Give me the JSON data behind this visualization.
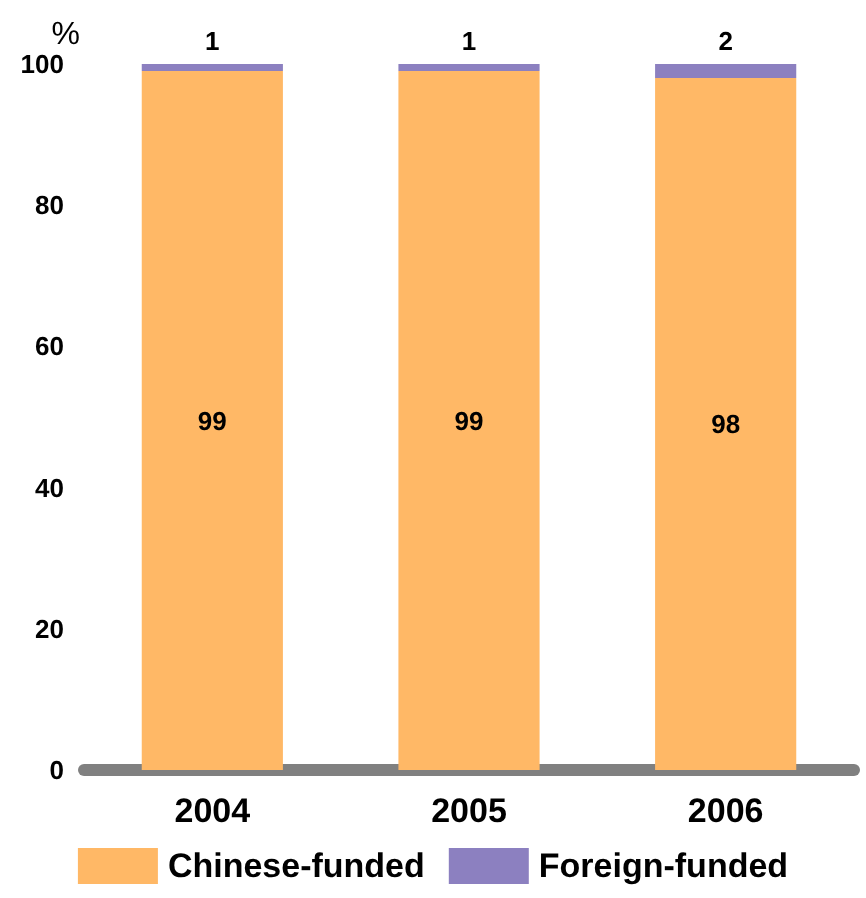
{
  "chart_data": {
    "type": "bar",
    "stacked": true,
    "ylabel": "%",
    "categories": [
      "2004",
      "2005",
      "2006"
    ],
    "series": [
      {
        "name": "Chinese-funded",
        "color": "#ffb866",
        "values": [
          99,
          99,
          98
        ]
      },
      {
        "name": "Foreign-funded",
        "color": "#8c80c0",
        "values": [
          1,
          1,
          2
        ]
      }
    ],
    "ylim": [
      0,
      100
    ],
    "yticks": [
      0,
      20,
      40,
      60,
      80,
      100
    ],
    "grid": false,
    "legend": "bottom",
    "data_labels": true
  }
}
